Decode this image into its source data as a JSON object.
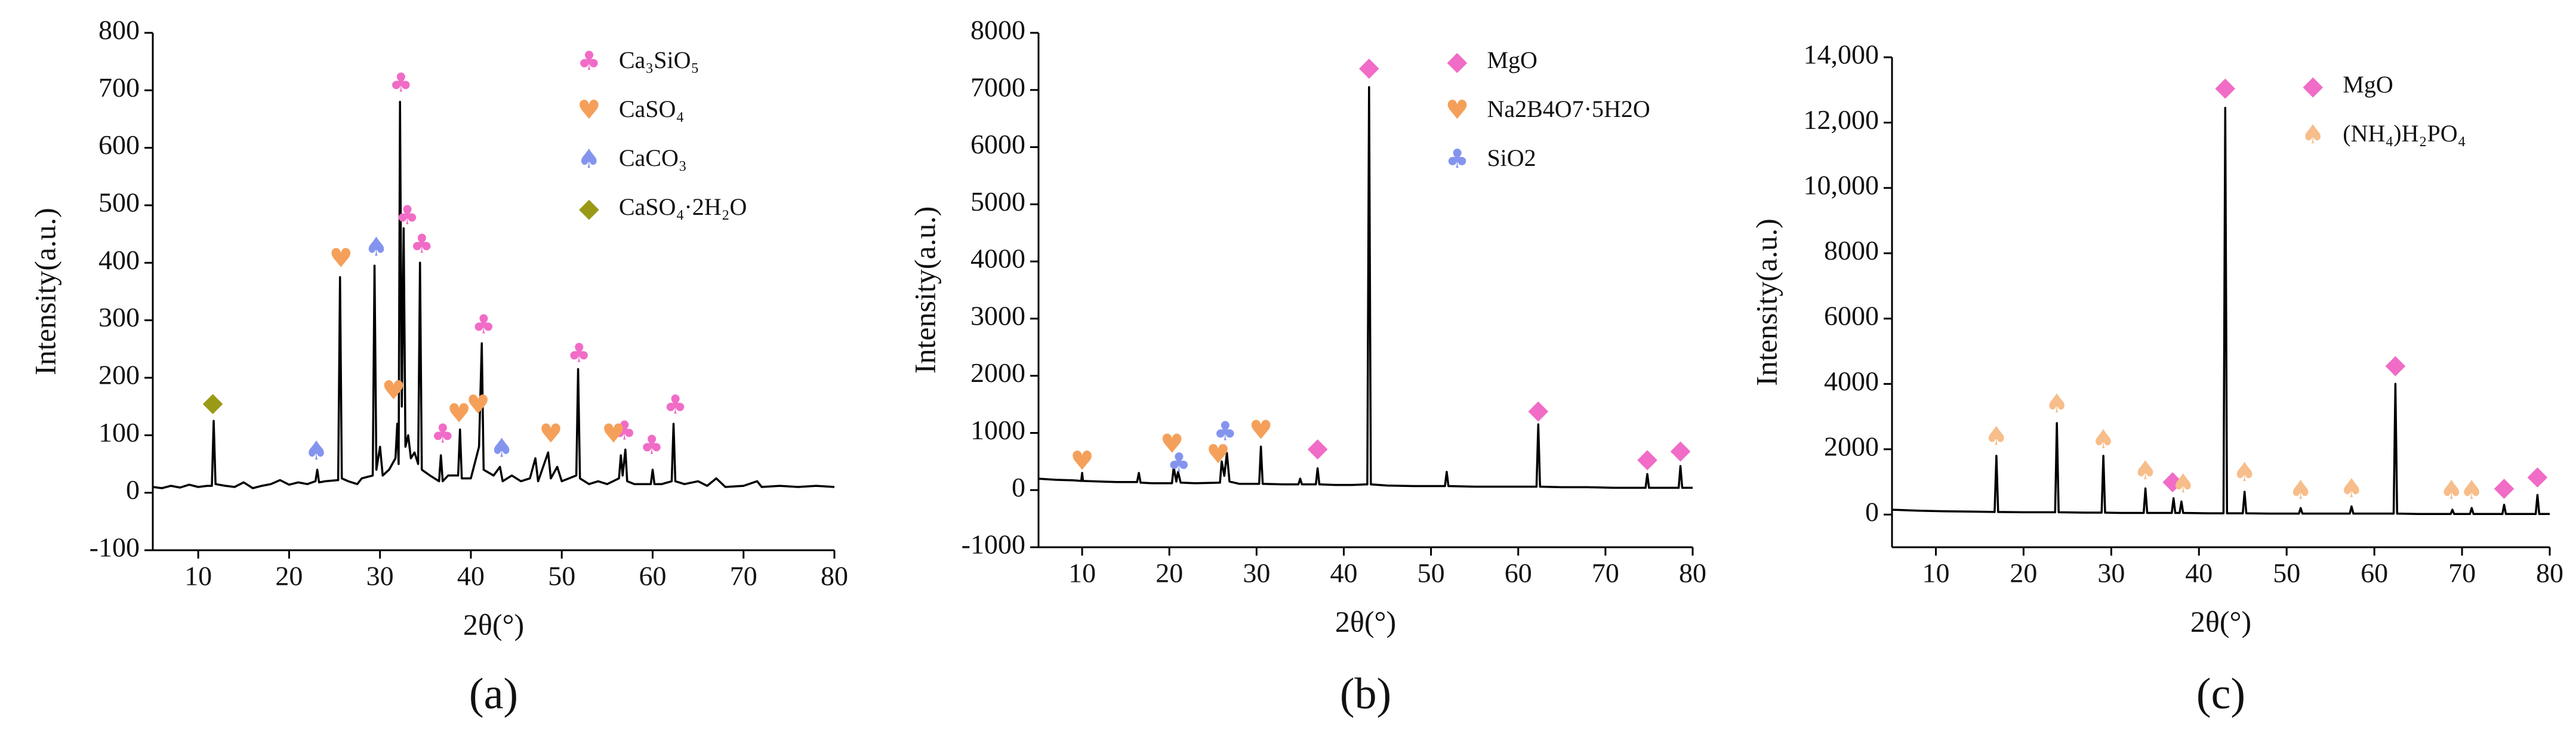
{
  "chart_data": [
    {
      "type": "line",
      "caption": "(a)",
      "xlabel": "2θ(°)",
      "ylabel": "Intensity(a.u.)",
      "xlim": [
        5,
        80
      ],
      "ylim": [
        -100,
        800
      ],
      "xticks": [
        10,
        20,
        30,
        40,
        50,
        60,
        70,
        80
      ],
      "yticks": [
        -100,
        0,
        100,
        200,
        300,
        400,
        500,
        600,
        700,
        800
      ],
      "pattern": {
        "color": "#000000",
        "x": [
          5,
          6,
          7,
          8,
          9,
          10,
          11,
          11.5,
          11.7,
          11.9,
          13,
          14,
          15,
          16,
          17,
          18,
          19,
          20,
          21,
          22,
          22.9,
          23.1,
          23.3,
          24,
          25.4,
          25.6,
          25.8,
          26.5,
          27.5,
          28,
          29.2,
          29.4,
          29.6,
          30,
          30.3,
          31,
          31.7,
          31.9,
          32.05,
          32.2,
          32.4,
          32.6,
          32.8,
          33.1,
          33.4,
          33.8,
          34.2,
          34.4,
          34.6,
          35.5,
          36.5,
          36.7,
          36.9,
          37.5,
          38.6,
          38.8,
          39,
          40,
          40.9,
          41.2,
          41.4,
          42.5,
          43.2,
          43.5,
          44.5,
          45.5,
          46.5,
          47.1,
          47.4,
          48.5,
          48.8,
          49.5,
          50,
          51.6,
          51.8,
          52,
          53,
          54,
          55,
          56.3,
          56.5,
          56.7,
          57,
          57.2,
          58,
          59.8,
          60,
          60.2,
          61,
          62.1,
          62.3,
          62.5,
          63.5,
          65,
          66,
          67,
          68,
          70,
          71.5,
          72,
          74,
          76,
          78,
          80
        ],
        "values": [
          10,
          8,
          12,
          9,
          14,
          10,
          12,
          12,
          125,
          15,
          12,
          10,
          18,
          8,
          12,
          15,
          22,
          14,
          18,
          15,
          20,
          40,
          18,
          20,
          22,
          375,
          25,
          20,
          15,
          25,
          30,
          395,
          40,
          80,
          30,
          40,
          60,
          120,
          50,
          680,
          150,
          460,
          80,
          100,
          60,
          70,
          50,
          400,
          40,
          30,
          20,
          65,
          20,
          30,
          30,
          110,
          25,
          25,
          80,
          260,
          40,
          30,
          45,
          20,
          30,
          20,
          25,
          60,
          20,
          70,
          25,
          45,
          20,
          30,
          215,
          25,
          15,
          20,
          15,
          25,
          65,
          30,
          75,
          20,
          15,
          15,
          40,
          15,
          15,
          20,
          120,
          20,
          15,
          20,
          12,
          25,
          10,
          12,
          20,
          10,
          12,
          10,
          12,
          10
        ]
      },
      "series": [
        {
          "name": "Ca₃SiO₅",
          "color": "#f06cc6",
          "marker": "club",
          "x": [
            32.3,
            33.0,
            34.6,
            36.9,
            41.4,
            51.9,
            56.9,
            59.9,
            62.5
          ],
          "values": [
            710,
            480,
            430,
            100,
            290,
            240,
            105,
            80,
            150
          ]
        },
        {
          "name": "CaSO₄",
          "color": "#f5a05a",
          "marker": "heart",
          "x": [
            25.7,
            31.5,
            38.7,
            40.8,
            48.8,
            55.7
          ],
          "values": [
            405,
            175,
            135,
            150,
            100,
            100
          ]
        },
        {
          "name": "CaCO₃",
          "color": "#8494ee",
          "marker": "spade",
          "x": [
            23.0,
            29.6,
            43.4
          ],
          "values": [
            70,
            425,
            75
          ]
        },
        {
          "name": "CaSO₄·2H₂O",
          "color": "#9b9a17",
          "marker": "diamond",
          "x": [
            11.6
          ],
          "values": [
            155
          ]
        }
      ]
    },
    {
      "type": "line",
      "caption": "(b)",
      "xlabel": "2θ(°)",
      "ylabel": "Intensity(a.u.)",
      "xlim": [
        5,
        80
      ],
      "ylim": [
        -1000,
        8000
      ],
      "xticks": [
        10,
        20,
        30,
        40,
        50,
        60,
        70,
        80
      ],
      "yticks": [
        -1000,
        0,
        1000,
        2000,
        3000,
        4000,
        5000,
        6000,
        7000,
        8000
      ],
      "pattern": {
        "color": "#000000",
        "x": [
          5,
          7,
          9,
          9.9,
          10,
          10.1,
          12,
          14,
          16.3,
          16.5,
          16.7,
          18,
          20.3,
          20.5,
          20.8,
          21,
          21.3,
          23,
          25.8,
          26,
          26.3,
          26.6,
          26.9,
          28,
          30.3,
          30.5,
          30.7,
          33,
          34.8,
          35,
          35.2,
          36.8,
          37,
          37.2,
          39,
          41,
          42.7,
          42.9,
          43.1,
          45,
          48,
          51.6,
          51.8,
          52,
          55,
          58,
          60.5,
          62.1,
          62.3,
          62.5,
          65,
          68,
          71,
          74.6,
          74.8,
          75,
          77,
          78.4,
          78.6,
          78.8,
          80
        ],
        "values": [
          200,
          180,
          170,
          160,
          300,
          160,
          150,
          140,
          140,
          300,
          130,
          120,
          120,
          400,
          150,
          320,
          130,
          120,
          130,
          500,
          250,
          650,
          150,
          110,
          110,
          760,
          110,
          100,
          100,
          200,
          100,
          100,
          380,
          100,
          90,
          90,
          100,
          7050,
          100,
          80,
          70,
          70,
          320,
          70,
          60,
          60,
          60,
          60,
          1150,
          60,
          50,
          50,
          40,
          40,
          280,
          40,
          40,
          40,
          420,
          40,
          40
        ]
      },
      "series": [
        {
          "name": "MgO",
          "color": "#f06cc6",
          "marker": "diamond",
          "x": [
            37.0,
            42.9,
            62.3,
            74.8,
            78.6
          ],
          "values": [
            720,
            7380,
            1380,
            530,
            680
          ]
        },
        {
          "name": "Na2B4O7·5H2O",
          "color": "#f5a05a",
          "marker": "heart",
          "x": [
            10.0,
            20.3,
            25.6,
            30.5
          ],
          "values": [
            480,
            780,
            600,
            1020
          ]
        },
        {
          "name": "SiO2",
          "color": "#8494ee",
          "marker": "club",
          "x": [
            21.1,
            26.4
          ],
          "values": [
            450,
            1000
          ]
        }
      ]
    },
    {
      "type": "line",
      "caption": "(c)",
      "xlabel": "2θ(°)",
      "ylabel": "Intensity(a.u.)",
      "xlim": [
        5,
        80
      ],
      "ylim": [
        -1000,
        14000
      ],
      "xticks": [
        10,
        20,
        30,
        40,
        50,
        60,
        70,
        80
      ],
      "yticks": [
        0,
        2000,
        4000,
        6000,
        8000,
        {
          "value": 10000,
          "label": "10,000"
        },
        {
          "value": 12000,
          "label": "12,000"
        },
        {
          "value": 14000,
          "label": "14,000"
        }
      ],
      "pattern": {
        "color": "#000000",
        "x": [
          5,
          8,
          11,
          14,
          16.7,
          16.9,
          17.1,
          20,
          23.6,
          23.8,
          24,
          27,
          28.9,
          29.1,
          29.3,
          31,
          33.7,
          33.9,
          34.1,
          36.9,
          37.1,
          37.3,
          37.8,
          38,
          38.2,
          41,
          42.8,
          43,
          43.2,
          45,
          45.2,
          45.4,
          48,
          51.4,
          51.6,
          51.8,
          55,
          57.2,
          57.4,
          57.6,
          60,
          62.2,
          62.4,
          62.6,
          65,
          68.7,
          68.9,
          69.1,
          70.9,
          71.1,
          71.3,
          74.6,
          74.8,
          75,
          78.4,
          78.6,
          78.8,
          80
        ],
        "values": [
          150,
          120,
          100,
          90,
          80,
          1800,
          80,
          70,
          70,
          2800,
          70,
          60,
          60,
          1800,
          60,
          50,
          50,
          800,
          50,
          50,
          500,
          50,
          50,
          400,
          50,
          40,
          40,
          12450,
          40,
          40,
          700,
          40,
          30,
          30,
          200,
          30,
          30,
          30,
          250,
          30,
          30,
          30,
          4000,
          30,
          20,
          20,
          150,
          20,
          20,
          200,
          20,
          20,
          300,
          20,
          20,
          600,
          20,
          20
        ]
      },
      "series": [
        {
          "name": "MgO",
          "color": "#f06cc6",
          "marker": "diamond",
          "x": [
            37.0,
            43.0,
            62.4,
            74.8,
            78.6
          ],
          "values": [
            1000,
            13050,
            4550,
            800,
            1150
          ]
        },
        {
          "name": "(NH₄)H₂PO₄",
          "color": "#f7bd8a",
          "marker": "spade",
          "x": [
            16.9,
            23.8,
            29.1,
            33.9,
            38.2,
            45.2,
            51.6,
            57.4,
            68.8,
            71.1
          ],
          "values": [
            2350,
            3350,
            2250,
            1300,
            900,
            1250,
            700,
            750,
            700,
            700
          ]
        }
      ]
    }
  ]
}
